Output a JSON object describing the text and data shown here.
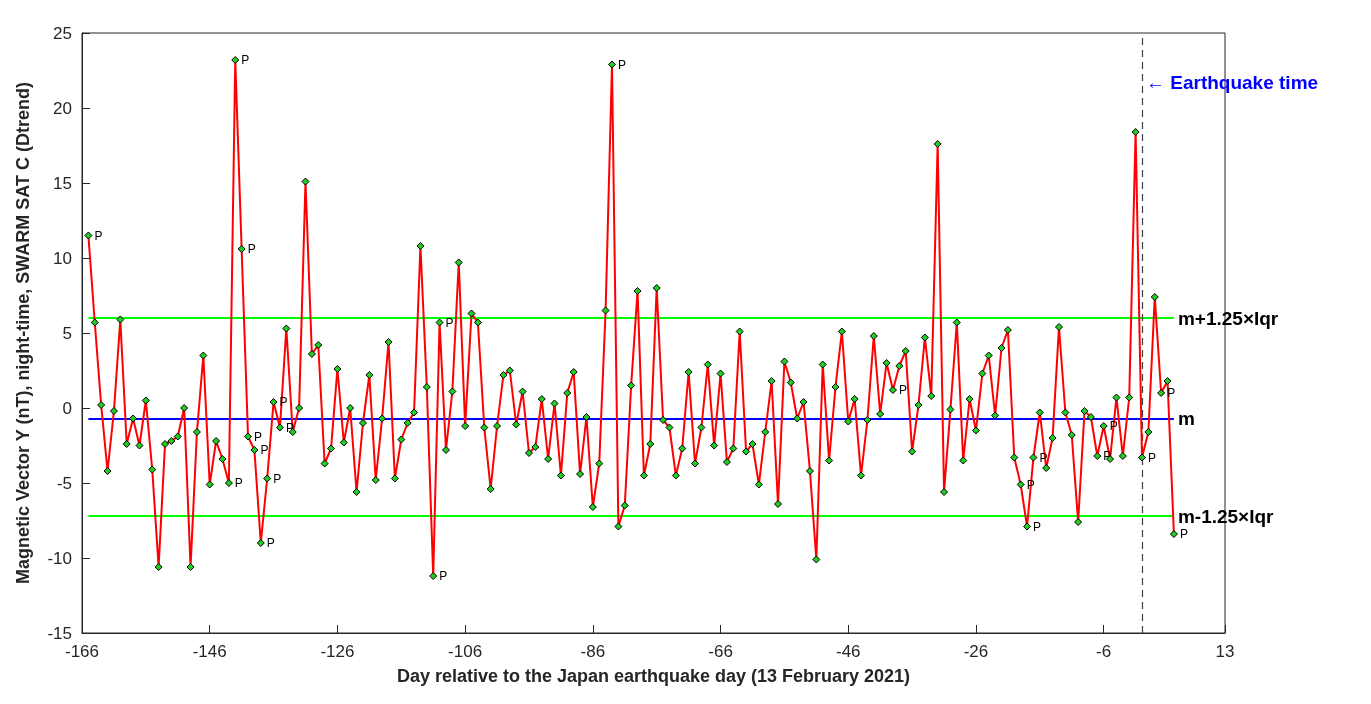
{
  "chart_data": {
    "type": "line",
    "xlabel": "Day relative to the Japan earthquake day (13 February 2021)",
    "ylabel": "Magnetic Vector Y (nT), night-time, SWARM SAT C (Dtrend)",
    "xlim": [
      -166,
      13
    ],
    "xticks": [
      -166,
      -146,
      -126,
      -106,
      -86,
      -66,
      -46,
      -26,
      -6,
      13
    ],
    "ylim": [
      -15,
      25
    ],
    "yticks": [
      -15,
      -10,
      -5,
      0,
      5,
      10,
      15,
      20,
      25
    ],
    "marker": "diamond",
    "line_style": "solid",
    "series": [
      {
        "color": "#ff0000",
        "x": [
          -165,
          -164,
          -163,
          -162,
          -161,
          -160,
          -159,
          -158,
          -157,
          -156,
          -155,
          -154,
          -153,
          -152,
          -151,
          -150,
          -149,
          -148,
          -147,
          -146,
          -145,
          -144,
          -143,
          -142,
          -141,
          -140,
          -139,
          -138,
          -137,
          -136,
          -135,
          -134,
          -133,
          -132,
          -131,
          -130,
          -129,
          -128,
          -127,
          -126,
          -125,
          -124,
          -123,
          -122,
          -121,
          -120,
          -119,
          -118,
          -117,
          -116,
          -115,
          -114,
          -113,
          -112,
          -111,
          -110,
          -109,
          -108,
          -107,
          -106,
          -105,
          -104,
          -103,
          -102,
          -101,
          -100,
          -99,
          -98,
          -97,
          -96,
          -95,
          -94,
          -93,
          -92,
          -91,
          -90,
          -89,
          -88,
          -87,
          -86,
          -85,
          -84,
          -83,
          -82,
          -81,
          -80,
          -79,
          -78,
          -77,
          -76,
          -75,
          -74,
          -73,
          -72,
          -71,
          -70,
          -69,
          -68,
          -67,
          -66,
          -65,
          -64,
          -63,
          -62,
          -61,
          -60,
          -59,
          -58,
          -57,
          -56,
          -55,
          -54,
          -53,
          -52,
          -51,
          -50,
          -49,
          -48,
          -47,
          -46,
          -45,
          -44,
          -43,
          -42,
          -41,
          -40,
          -39,
          -38,
          -37,
          -36,
          -35,
          -34,
          -33,
          -32,
          -31,
          -30,
          -29,
          -28,
          -27,
          -26,
          -25,
          -24,
          -23,
          -22,
          -21,
          -20,
          -19,
          -18,
          -17,
          -16,
          -15,
          -14,
          -13,
          -12,
          -11,
          -10,
          -9,
          -8,
          -7,
          -6,
          -5,
          -4,
          -3,
          -2,
          -1,
          0,
          1,
          2,
          3,
          4,
          5
        ],
        "values": [
          11.5,
          5.7,
          0.2,
          -4.2,
          -0.2,
          5.9,
          -2.4,
          -0.7,
          -2.5,
          0.5,
          -4.1,
          -10.6,
          -2.4,
          -2.2,
          -1.9,
          0,
          -10.6,
          -1.6,
          3.5,
          -5.1,
          -2.2,
          -3.4,
          -5.0,
          23.2,
          10.6,
          -1.9,
          -2.8,
          -9.0,
          -4.7,
          0.4,
          -1.3,
          5.3,
          -1.6,
          0,
          15.1,
          3.6,
          4.2,
          -3.7,
          -2.7,
          2.6,
          -2.3,
          0,
          -5.6,
          -1.0,
          2.2,
          -4.8,
          -0.7,
          4.4,
          -4.7,
          -2.1,
          -1.0,
          -0.3,
          10.8,
          1.4,
          -11.2,
          5.7,
          -2.8,
          1.1,
          9.7,
          -1.2,
          6.3,
          5.7,
          -1.3,
          -5.4,
          -1.2,
          2.2,
          2.5,
          -1.1,
          1.1,
          -3.0,
          -2.6,
          0.6,
          -3.4,
          0.3,
          -4.5,
          1.0,
          2.4,
          -4.4,
          -0.6,
          -6.6,
          -3.7,
          6.5,
          22.9,
          -7.9,
          -6.5,
          1.5,
          7.8,
          -4.5,
          -2.4,
          8.0,
          -0.8,
          -1.3,
          -4.5,
          -2.7,
          2.4,
          -3.7,
          -1.3,
          2.9,
          -2.5,
          2.3,
          -3.6,
          -2.7,
          5.1,
          -2.9,
          -2.4,
          -5.1,
          -1.6,
          1.8,
          -6.4,
          3.1,
          1.7,
          -0.7,
          0.4,
          -4.2,
          -10.1,
          2.9,
          -3.5,
          1.4,
          5.1,
          -0.9,
          0.6,
          -4.5,
          -0.8,
          4.8,
          -0.4,
          3.0,
          1.2,
          2.8,
          3.8,
          -2.9,
          0.2,
          4.7,
          0.8,
          17.6,
          -5.6,
          -0.1,
          5.7,
          -3.5,
          0.6,
          -1.5,
          2.3,
          3.5,
          -0.5,
          4.0,
          5.2,
          -3.3,
          -5.1,
          -7.9,
          -3.3,
          -0.3,
          -4.0,
          -2.0,
          5.4,
          -0.3,
          -1.8,
          -7.6,
          -0.2,
          -0.6,
          -3.2,
          -1.2,
          -3.4,
          0.7,
          -3.2,
          0.7,
          18.4,
          -3.3,
          -1.6,
          7.4,
          1.0,
          1.8,
          -8.4
        ],
        "value_labels": [
          "P",
          null,
          null,
          null,
          null,
          null,
          null,
          null,
          null,
          null,
          null,
          null,
          null,
          null,
          null,
          null,
          null,
          null,
          null,
          null,
          null,
          null,
          "P",
          "P",
          "P",
          "P",
          "P",
          "P",
          "P",
          "P",
          "P",
          null,
          null,
          null,
          null,
          null,
          null,
          null,
          null,
          null,
          null,
          null,
          null,
          null,
          null,
          null,
          null,
          null,
          null,
          null,
          null,
          null,
          null,
          null,
          "P",
          "P",
          null,
          null,
          null,
          null,
          null,
          null,
          null,
          null,
          null,
          null,
          null,
          null,
          null,
          null,
          null,
          null,
          null,
          null,
          null,
          null,
          null,
          null,
          null,
          null,
          null,
          null,
          "P",
          null,
          null,
          null,
          null,
          null,
          null,
          null,
          null,
          null,
          null,
          null,
          null,
          null,
          null,
          null,
          null,
          null,
          null,
          null,
          null,
          null,
          null,
          null,
          null,
          null,
          null,
          null,
          null,
          null,
          null,
          null,
          null,
          null,
          null,
          null,
          null,
          null,
          null,
          null,
          null,
          null,
          null,
          null,
          "P",
          null,
          null,
          null,
          null,
          null,
          null,
          null,
          null,
          null,
          null,
          null,
          null,
          null,
          null,
          null,
          null,
          null,
          null,
          null,
          "P",
          "P",
          "P",
          null,
          null,
          null,
          null,
          null,
          null,
          null,
          null,
          null,
          "P",
          "P",
          null,
          null,
          null,
          null,
          null,
          "P",
          null,
          null,
          "P",
          null,
          "P"
        ]
      }
    ],
    "ref_lines": [
      {
        "axis": "y",
        "value": 6.0,
        "label": "m+1.25×Iqr",
        "color": "#00ff00"
      },
      {
        "axis": "y",
        "value": -0.7,
        "label": "m",
        "color": "#0000ff"
      },
      {
        "axis": "y",
        "value": -7.2,
        "label": "m-1.25×Iqr",
        "color": "#00ff00"
      },
      {
        "axis": "x",
        "value": 0,
        "color": "#404040",
        "line_style": "dashed"
      }
    ],
    "annotations": [
      {
        "text": "← Earthquake time",
        "x": 0,
        "y": 21.7
      }
    ]
  }
}
